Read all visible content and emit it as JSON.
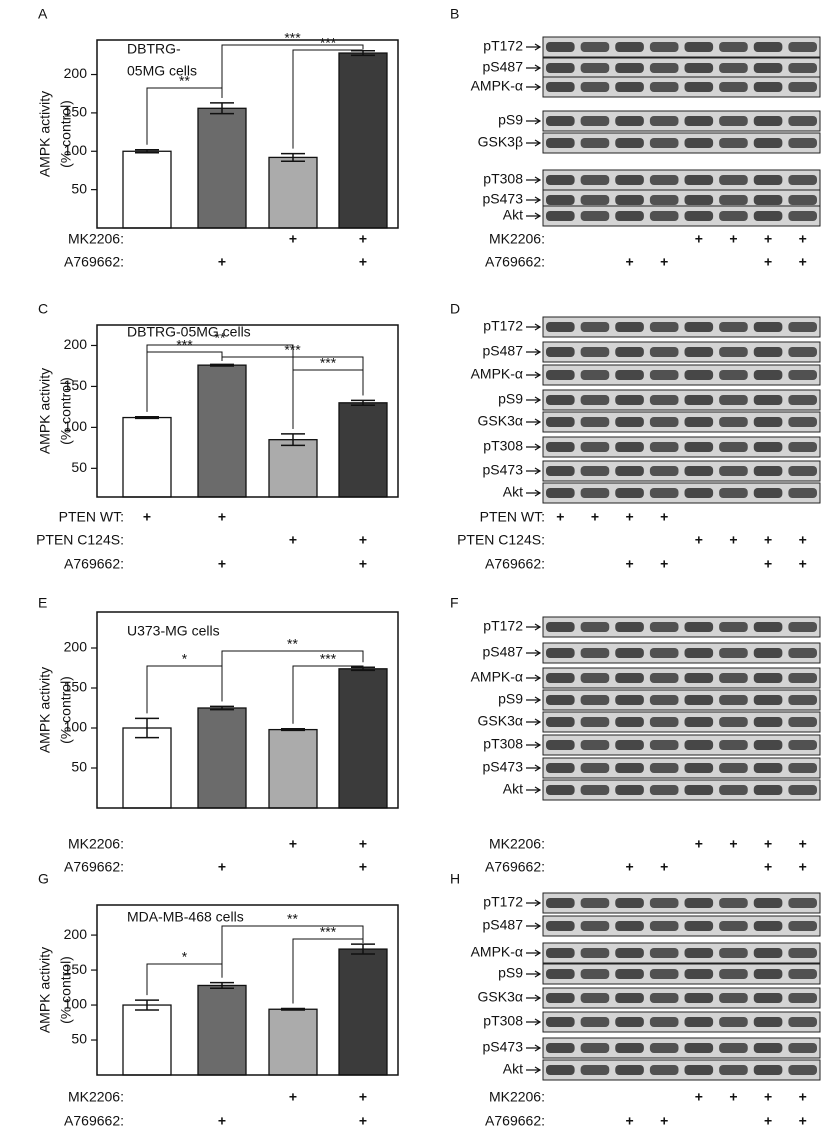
{
  "chart_data": [
    {
      "type": "bar",
      "panel": "A",
      "title": [
        "DBTRG-",
        "05MG cells"
      ],
      "ylabel": [
        "AMPK activity",
        "(% control)"
      ],
      "values": [
        100,
        156,
        92,
        228
      ],
      "errors": [
        2,
        7,
        5,
        3
      ],
      "colors": [
        "#ffffff",
        "#6b6b6b",
        "#ababab",
        "#3b3b3b"
      ],
      "ylim": [
        0,
        245
      ],
      "yticks": [
        50,
        100,
        150,
        200
      ],
      "annotations": [
        "**",
        "***",
        "***"
      ],
      "treatments": [
        {
          "label": "MK2206:",
          "marks": [
            null,
            null,
            "+",
            "+"
          ]
        },
        {
          "label": "A769662:",
          "marks": [
            null,
            "+",
            null,
            "+"
          ]
        }
      ]
    },
    {
      "type": "bar",
      "panel": "C",
      "title": [
        "DBTRG-05MG cells"
      ],
      "ylabel": [
        "AMPK activity",
        "(% control)"
      ],
      "values": [
        112,
        176,
        85,
        130
      ],
      "errors": [
        1,
        1,
        7,
        3
      ],
      "colors": [
        "#ffffff",
        "#6b6b6b",
        "#ababab",
        "#3b3b3b"
      ],
      "ylim": [
        15,
        225
      ],
      "yticks": [
        50,
        100,
        150,
        200
      ],
      "annotations": [
        "***",
        "**",
        "***",
        "***"
      ],
      "treatments": [
        {
          "label": "PTEN WT:",
          "marks": [
            "+",
            "+",
            null,
            null
          ]
        },
        {
          "label": "PTEN C124S:",
          "marks": [
            null,
            null,
            "+",
            "+"
          ]
        },
        {
          "label": "A769662:",
          "marks": [
            null,
            "+",
            null,
            "+"
          ]
        }
      ]
    },
    {
      "type": "bar",
      "panel": "E",
      "title": [
        "U373-MG cells"
      ],
      "ylabel": [
        "AMPK activity",
        "(% control)"
      ],
      "values": [
        100,
        125,
        98,
        174
      ],
      "errors": [
        12,
        2,
        1,
        2
      ],
      "colors": [
        "#ffffff",
        "#6b6b6b",
        "#ababab",
        "#3b3b3b"
      ],
      "ylim": [
        0,
        245
      ],
      "yticks": [
        50,
        100,
        150,
        200
      ],
      "annotations": [
        "*",
        "**",
        "***"
      ],
      "treatments": [
        {
          "label": "MK2206:",
          "marks": [
            null,
            null,
            "+",
            "+"
          ]
        },
        {
          "label": "A769662:",
          "marks": [
            null,
            "+",
            null,
            "+"
          ]
        }
      ]
    },
    {
      "type": "bar",
      "panel": "G",
      "title": [
        "MDA-MB-468 cells"
      ],
      "ylabel": [
        "AMPK activity",
        "(% control)"
      ],
      "values": [
        100,
        128,
        94,
        180
      ],
      "errors": [
        7,
        4,
        1,
        7
      ],
      "colors": [
        "#ffffff",
        "#6b6b6b",
        "#ababab",
        "#3b3b3b"
      ],
      "ylim": [
        0,
        243
      ],
      "yticks": [
        50,
        100,
        150,
        200
      ],
      "annotations": [
        "*",
        "**",
        "***"
      ],
      "treatments": [
        {
          "label": "MK2206:",
          "marks": [
            null,
            null,
            "+",
            "+"
          ]
        },
        {
          "label": "A769662:",
          "marks": [
            null,
            "+",
            null,
            "+"
          ]
        }
      ]
    }
  ],
  "blots": [
    {
      "panel": "B",
      "rows": [
        "pT172",
        "pS487",
        "AMPK-α",
        "pS9",
        "GSK3β",
        "pT308",
        "pS473",
        "Akt"
      ],
      "treatments": [
        {
          "label": "MK2206:",
          "marks": [
            null,
            null,
            null,
            null,
            "+",
            "+",
            "+",
            "+"
          ]
        },
        {
          "label": "A769662:",
          "marks": [
            null,
            null,
            "+",
            "+",
            null,
            null,
            "+",
            "+"
          ]
        }
      ]
    },
    {
      "panel": "D",
      "rows": [
        "pT172",
        "pS487",
        "AMPK-α",
        "pS9",
        "GSK3α",
        "pT308",
        "pS473",
        "Akt"
      ],
      "treatments": [
        {
          "label": "PTEN WT:",
          "marks": [
            "+",
            "+",
            "+",
            "+",
            null,
            null,
            null,
            null
          ]
        },
        {
          "label": "PTEN C124S:",
          "marks": [
            null,
            null,
            null,
            null,
            "+",
            "+",
            "+",
            "+"
          ]
        },
        {
          "label": "A769662:",
          "marks": [
            null,
            null,
            "+",
            "+",
            null,
            null,
            "+",
            "+"
          ]
        }
      ]
    },
    {
      "panel": "F",
      "rows": [
        "pT172",
        "pS487",
        "AMPK-α",
        "pS9",
        "GSK3α",
        "pT308",
        "pS473",
        "Akt"
      ],
      "treatments": [
        {
          "label": "MK2206:",
          "marks": [
            null,
            null,
            null,
            null,
            "+",
            "+",
            "+",
            "+"
          ]
        },
        {
          "label": "A769662:",
          "marks": [
            null,
            null,
            "+",
            "+",
            null,
            null,
            "+",
            "+"
          ]
        }
      ]
    },
    {
      "panel": "H",
      "rows": [
        "pT172",
        "pS487",
        "AMPK-α",
        "pS9",
        "GSK3α",
        "pT308",
        "pS473",
        "Akt"
      ],
      "treatments": [
        {
          "label": "MK2206:",
          "marks": [
            null,
            null,
            null,
            null,
            "+",
            "+",
            "+",
            "+"
          ]
        },
        {
          "label": "A769662:",
          "marks": [
            null,
            null,
            "+",
            "+",
            null,
            null,
            "+",
            "+"
          ]
        }
      ]
    }
  ]
}
